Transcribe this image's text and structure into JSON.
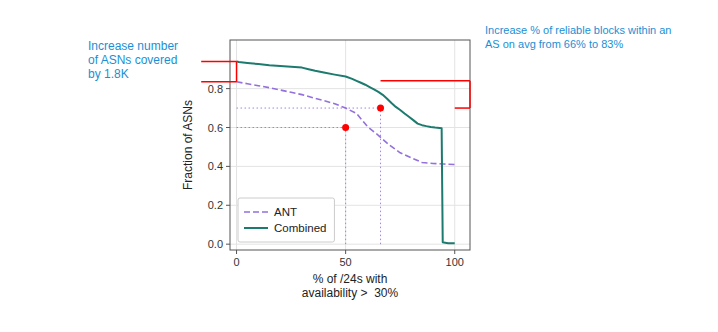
{
  "chart_data": {
    "type": "line",
    "xlabel": "% of /24s with\navailability >  30%",
    "ylabel": "Fraction of ASNs",
    "xlim": [
      -3,
      107
    ],
    "ylim": [
      -0.03,
      1.05
    ],
    "xticks": [
      0,
      50,
      100
    ],
    "yticks": [
      {
        "value": 0.0,
        "label": "0.0"
      },
      0.2,
      0.4,
      0.6,
      0.8
    ],
    "grid": true,
    "legend": "lower left",
    "series": [
      {
        "name": "ANT",
        "color": "#9370DB",
        "line_style": "dashed",
        "x": [
          0,
          5,
          10,
          15,
          20,
          25,
          30,
          35,
          40,
          45,
          50,
          55,
          60,
          65,
          70,
          75,
          80,
          85,
          90,
          95,
          100
        ],
        "values": [
          0.835,
          0.825,
          0.815,
          0.805,
          0.793,
          0.781,
          0.769,
          0.753,
          0.738,
          0.722,
          0.7,
          0.672,
          0.605,
          0.56,
          0.51,
          0.47,
          0.445,
          0.42,
          0.415,
          0.412,
          0.41
        ]
      },
      {
        "name": "Combined",
        "color": "#1C7A6E",
        "line_style": "solid",
        "x": [
          0,
          1,
          5,
          10,
          15,
          20,
          25,
          30,
          33,
          36,
          40,
          45,
          50,
          53,
          55,
          57,
          59,
          61,
          63,
          65,
          67,
          69,
          71,
          73,
          75,
          77,
          79,
          81,
          83,
          85,
          87,
          89,
          91,
          93,
          94,
          94.5,
          95,
          97,
          100
        ],
        "values": [
          0.94,
          0.937,
          0.932,
          0.926,
          0.92,
          0.916,
          0.912,
          0.908,
          0.9,
          0.892,
          0.883,
          0.872,
          0.862,
          0.85,
          0.84,
          0.83,
          0.82,
          0.808,
          0.796,
          0.783,
          0.768,
          0.748,
          0.726,
          0.706,
          0.69,
          0.672,
          0.655,
          0.638,
          0.62,
          0.612,
          0.607,
          0.603,
          0.6,
          0.598,
          0.596,
          0.01,
          0.008,
          0.005,
          0.005
        ]
      }
    ],
    "highlights": {
      "color": "red",
      "marker": "circle",
      "points": [
        {
          "x": 50,
          "y": 0.6
        },
        {
          "x": 66,
          "y": 0.7
        }
      ]
    },
    "brackets": {
      "color": "red",
      "items": [
        {
          "x": 0,
          "y_bottom": 0.835,
          "y_top": 0.94
        },
        {
          "x_left": 66,
          "x_right": 100,
          "y_bottom": 0.7,
          "y_top": 0.84
        }
      ]
    },
    "annotations": [
      {
        "text": "Increase number\nof ASNs covered\nby 1.8K",
        "color": "#1B8FD4"
      },
      {
        "text": "Increase % of reliable blocks within an\nAS on avg from 66% to 83%",
        "color": "#1B8FD4"
      }
    ]
  }
}
